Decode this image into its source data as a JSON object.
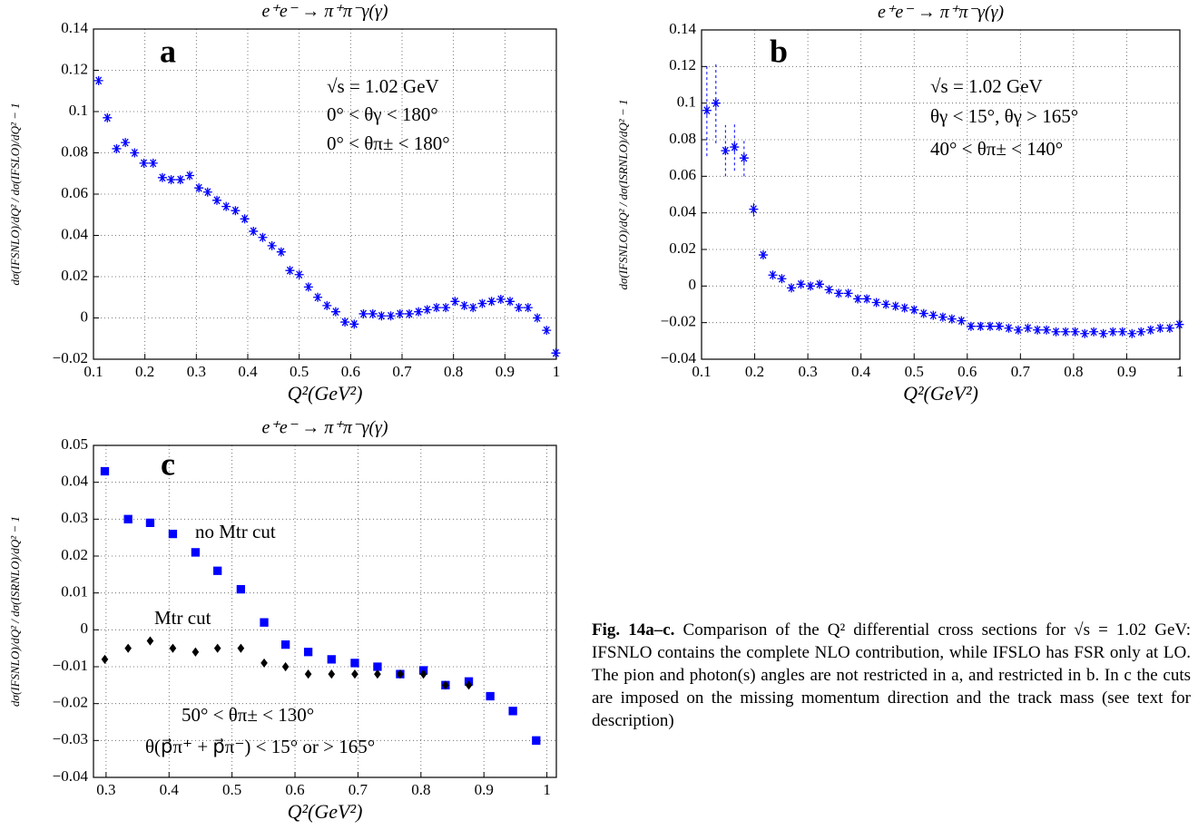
{
  "chart_data": [
    {
      "type": "scatter",
      "title": "e⁺e⁻ → π⁺π⁻γ(γ)",
      "panel": "a",
      "x_label": "Q²(GeV²)",
      "y_label": "dσ(IFSNLO)/dQ² / dσ(IFSLO)/dQ² − 1",
      "annotations": [
        "√s = 1.02 GeV",
        "0° < θγ < 180°",
        "0° < θπ± < 180°"
      ],
      "xlim": [
        0.1,
        1
      ],
      "xticks": [
        0.1,
        0.2,
        0.3,
        0.4,
        0.5,
        0.6,
        0.7,
        0.8,
        0.9,
        1
      ],
      "ylim": [
        -0.02,
        0.14
      ],
      "yticks": [
        {
          "value": -0.02,
          "label": "−0.02"
        },
        0,
        0.02,
        0.04,
        0.06,
        0.08,
        0.1,
        0.12,
        0.14
      ],
      "grid": true,
      "series": [
        {
          "marker": "asterisk",
          "color": "#0000ff",
          "x": [
            0.11,
            0.127,
            0.145,
            0.162,
            0.18,
            0.198,
            0.216,
            0.234,
            0.251,
            0.269,
            0.287,
            0.305,
            0.322,
            0.34,
            0.358,
            0.376,
            0.394,
            0.411,
            0.429,
            0.447,
            0.465,
            0.482,
            0.5,
            0.518,
            0.536,
            0.554,
            0.571,
            0.589,
            0.607,
            0.625,
            0.643,
            0.66,
            0.678,
            0.696,
            0.714,
            0.732,
            0.749,
            0.767,
            0.785,
            0.803,
            0.821,
            0.838,
            0.856,
            0.874,
            0.892,
            0.91,
            0.927,
            0.945,
            0.963,
            0.981,
            0.999
          ],
          "values": [
            0.115,
            0.097,
            0.082,
            0.085,
            0.08,
            0.075,
            0.075,
            0.068,
            0.067,
            0.067,
            0.069,
            0.063,
            0.061,
            0.057,
            0.054,
            0.052,
            0.048,
            0.042,
            0.039,
            0.035,
            0.032,
            0.023,
            0.021,
            0.015,
            0.01,
            0.006,
            0.003,
            -0.002,
            -0.003,
            0.002,
            0.002,
            0.001,
            0.001,
            0.002,
            0.002,
            0.003,
            0.004,
            0.005,
            0.005,
            0.008,
            0.006,
            0.005,
            0.007,
            0.008,
            0.009,
            0.008,
            0.005,
            0.005,
            0.0,
            -0.006,
            -0.017
          ]
        }
      ]
    },
    {
      "type": "scatter",
      "title": "e⁺e⁻ → π⁺π⁻γ(γ)",
      "panel": "b",
      "x_label": "Q²(GeV²)",
      "y_label": "dσ(IFSNLO)/dQ² / dσ(ISRNLO)/dQ² − 1",
      "annotations": [
        "√s = 1.02 GeV",
        "θγ < 15°, θγ > 165°",
        "40° < θπ± < 140°"
      ],
      "xlim": [
        0.1,
        1
      ],
      "xticks": [
        0.1,
        0.2,
        0.3,
        0.4,
        0.5,
        0.6,
        0.7,
        0.8,
        0.9,
        1
      ],
      "ylim": [
        -0.04,
        0.14
      ],
      "yticks": [
        {
          "value": -0.04,
          "label": "−0.04"
        },
        {
          "value": -0.02,
          "label": "−0.02"
        },
        0,
        0.02,
        0.04,
        0.06,
        0.08,
        0.1,
        0.12,
        0.14
      ],
      "grid": true,
      "series": [
        {
          "marker": "asterisk",
          "color": "#0000ff",
          "x": [
            0.11,
            0.127,
            0.145,
            0.162,
            0.18,
            0.198,
            0.216,
            0.234,
            0.251,
            0.269,
            0.287,
            0.305,
            0.322,
            0.34,
            0.358,
            0.376,
            0.394,
            0.411,
            0.429,
            0.447,
            0.465,
            0.482,
            0.5,
            0.518,
            0.536,
            0.554,
            0.571,
            0.589,
            0.607,
            0.625,
            0.643,
            0.66,
            0.678,
            0.696,
            0.714,
            0.732,
            0.749,
            0.767,
            0.785,
            0.803,
            0.821,
            0.838,
            0.856,
            0.874,
            0.892,
            0.91,
            0.927,
            0.945,
            0.963,
            0.981,
            0.999
          ],
          "values": [
            0.096,
            0.1,
            0.074,
            0.076,
            0.07,
            0.042,
            0.017,
            0.006,
            0.004,
            -0.001,
            0.001,
            0.0,
            0.001,
            -0.002,
            -0.004,
            -0.004,
            -0.007,
            -0.007,
            -0.009,
            -0.01,
            -0.011,
            -0.012,
            -0.013,
            -0.015,
            -0.016,
            -0.017,
            -0.018,
            -0.019,
            -0.022,
            -0.022,
            -0.022,
            -0.022,
            -0.023,
            -0.024,
            -0.023,
            -0.024,
            -0.024,
            -0.025,
            -0.025,
            -0.025,
            -0.026,
            -0.025,
            -0.026,
            -0.025,
            -0.025,
            -0.026,
            -0.025,
            -0.024,
            -0.023,
            -0.023,
            -0.021
          ],
          "errors": [
            0.025,
            0.022,
            0.014,
            0.013,
            0.01,
            0.004,
            null,
            null,
            null,
            null,
            null,
            null,
            null,
            null,
            null,
            null,
            null,
            null,
            null,
            null,
            null,
            null,
            null,
            null,
            null,
            null,
            null,
            null,
            null,
            null,
            null,
            null,
            null,
            null,
            null,
            null,
            null,
            null,
            null,
            null,
            null,
            null,
            null,
            null,
            null,
            null,
            null,
            null,
            null,
            null,
            null
          ]
        }
      ]
    },
    {
      "type": "scatter",
      "title": "e⁺e⁻ → π⁺π⁻γ(γ)",
      "panel": "c",
      "x_label": "Q²(GeV²)",
      "y_label": "dσ(IFSNLO)/dQ² / dσ(ISRNLO)/dQ² − 1",
      "annotations": [
        "50° < θπ± < 130°",
        "θ(p⃗π⁺ + p⃗π⁻) < 15° or > 165°"
      ],
      "xlim": [
        0.28,
        1.015
      ],
      "xticks": [
        0.3,
        0.4,
        0.5,
        0.6,
        0.7,
        0.8,
        0.9,
        1
      ],
      "ylim": [
        -0.04,
        0.05
      ],
      "yticks": [
        {
          "value": -0.04,
          "label": "−0.04"
        },
        {
          "value": -0.03,
          "label": "−0.03"
        },
        {
          "value": -0.02,
          "label": "−0.02"
        },
        {
          "value": -0.01,
          "label": "−0.01"
        },
        0,
        0.01,
        0.02,
        0.03,
        0.04,
        0.05
      ],
      "grid": true,
      "series": [
        {
          "name": "no Mtr cut",
          "marker": "square",
          "color": "#0000ff",
          "x": [
            0.298,
            0.335,
            0.37,
            0.406,
            0.442,
            0.477,
            0.514,
            0.551,
            0.585,
            0.621,
            0.658,
            0.695,
            0.731,
            0.767,
            0.804,
            0.839,
            0.876,
            0.91,
            0.946,
            0.983
          ],
          "values": [
            0.043,
            0.03,
            0.029,
            0.026,
            0.021,
            0.016,
            0.011,
            0.002,
            -0.004,
            -0.006,
            -0.008,
            -0.009,
            -0.01,
            -0.012,
            -0.011,
            -0.015,
            -0.014,
            -0.018,
            -0.022,
            -0.03
          ]
        },
        {
          "name": "Mtr cut",
          "marker": "diamond",
          "color": "#000000",
          "x": [
            0.298,
            0.335,
            0.37,
            0.406,
            0.442,
            0.477,
            0.514,
            0.551,
            0.585,
            0.621,
            0.658,
            0.695,
            0.731,
            0.767,
            0.804,
            0.839,
            0.876
          ],
          "values": [
            -0.008,
            -0.005,
            -0.003,
            -0.005,
            -0.006,
            -0.005,
            -0.005,
            -0.009,
            -0.01,
            -0.012,
            -0.012,
            -0.012,
            -0.012,
            -0.012,
            -0.012,
            -0.015,
            -0.015
          ]
        }
      ]
    }
  ],
  "caption": {
    "label": "Fig. 14a–c.",
    "text": "Comparison of the Q² differential cross sections for √s = 1.02 GeV: IFSNLO contains the complete NLO contribution, while IFSLO has FSR only at LO. The pion and photon(s) angles are not restricted in a, and restricted in b. In c the cuts are imposed on the missing momentum direction and the track mass (see text for description)"
  }
}
